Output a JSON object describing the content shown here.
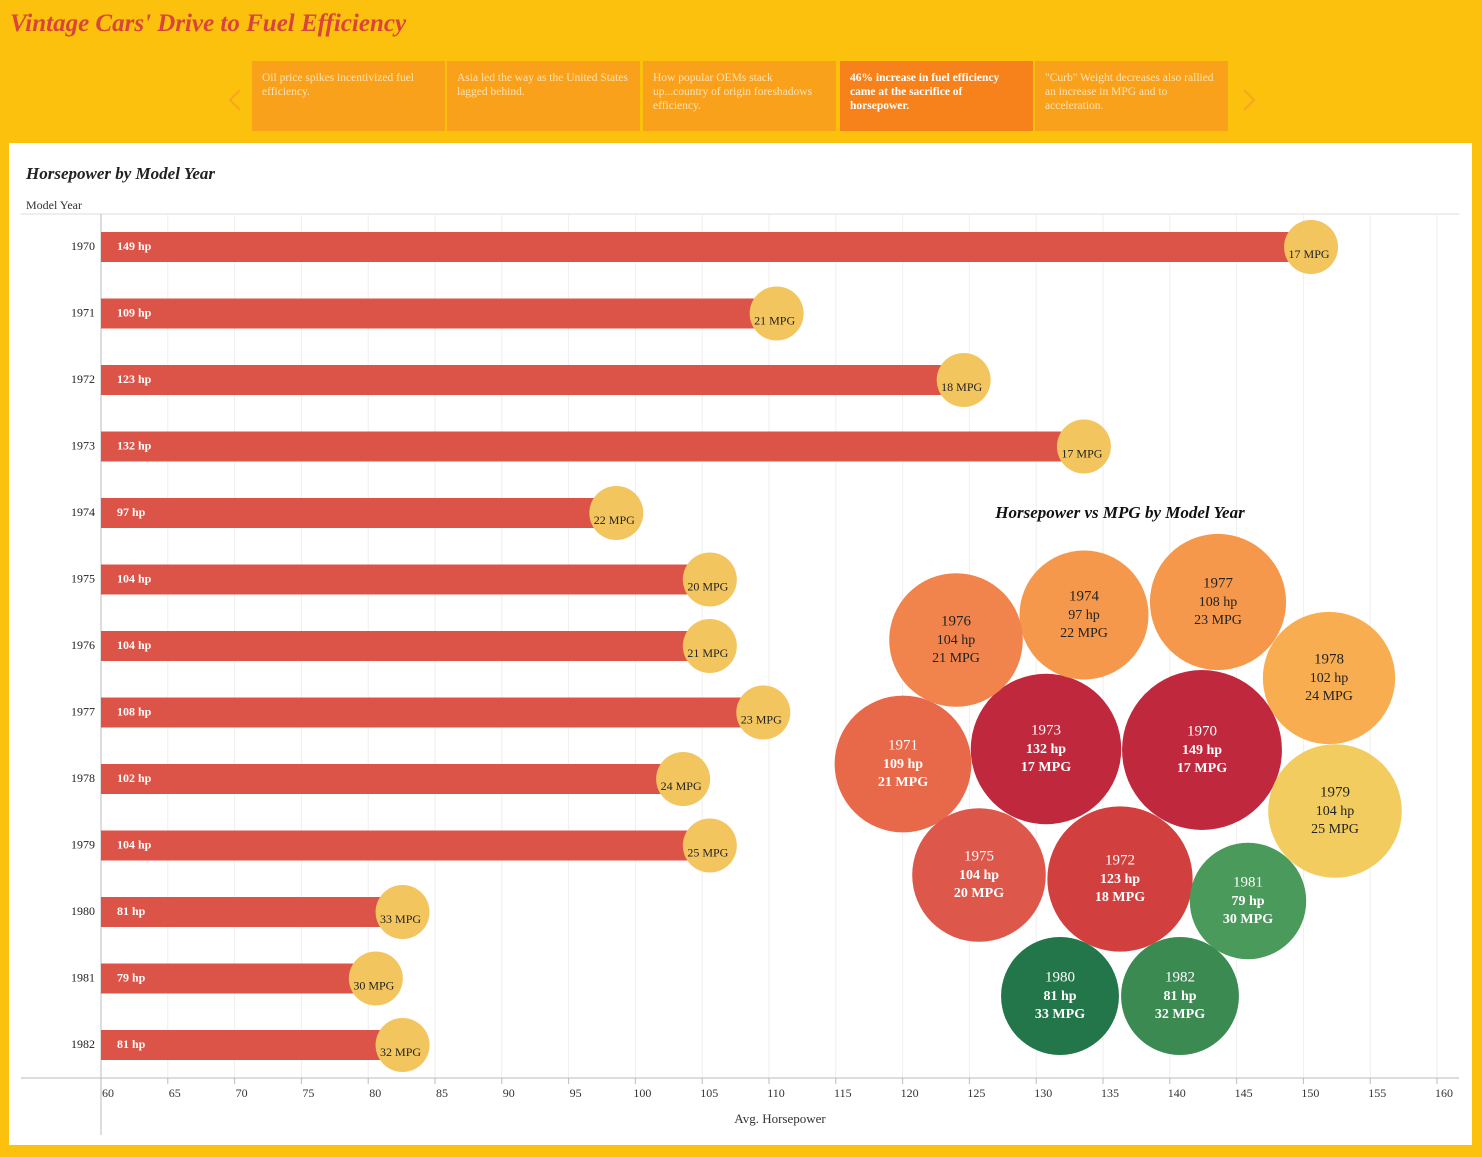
{
  "title": "Vintage Cars' Drive to Fuel Efficiency",
  "story_points": [
    "Oil price spikes incentivized fuel efficiency.",
    "Asia led the way as the United States lagged behind.",
    "How popular OEMs stack up...country of origin foreshadows efficiency.",
    "46% increase in fuel efficiency came at the sacrifice of horsepower.",
    "\"Curb\" Weight decreases also rallied an increase in MPG and to acceleration."
  ],
  "active_story_point": 3,
  "chart_data": [
    {
      "type": "bar",
      "title": "Horsepower by Model Year",
      "y_label": "Model Year",
      "x_label": "Avg. Horsepower",
      "categories": [
        "1970",
        "1971",
        "1972",
        "1973",
        "1974",
        "1975",
        "1976",
        "1977",
        "1978",
        "1979",
        "1980",
        "1981",
        "1982"
      ],
      "values": [
        149,
        109,
        123,
        132,
        97,
        104,
        104,
        108,
        102,
        104,
        81,
        79,
        81
      ],
      "value_labels": [
        "149 hp",
        "109 hp",
        "123 hp",
        "132 hp",
        "97 hp",
        "104 hp",
        "104 hp",
        "108 hp",
        "102 hp",
        "104 hp",
        "81 hp",
        "79 hp",
        "81 hp"
      ],
      "color": "#dc5448",
      "mpg": [
        17,
        21,
        18,
        17,
        22,
        20,
        21,
        23,
        24,
        25,
        33,
        30,
        32
      ],
      "mpg_labels": [
        "17 MPG",
        "21 MPG",
        "18 MPG",
        "17 MPG",
        "22 MPG",
        "20 MPG",
        "21 MPG",
        "23 MPG",
        "24 MPG",
        "25 MPG",
        "33 MPG",
        "30 MPG",
        "32 MPG"
      ],
      "mpg_color": "#f3c55e",
      "xlim": [
        60,
        160
      ],
      "xticks": [
        60,
        65,
        70,
        75,
        80,
        85,
        90,
        95,
        100,
        105,
        110,
        115,
        120,
        125,
        130,
        135,
        140,
        145,
        150,
        155,
        160
      ],
      "grid": true
    },
    {
      "type": "bubble",
      "title": "Horsepower vs MPG by Model Year",
      "categories": [
        "1970",
        "1971",
        "1972",
        "1973",
        "1974",
        "1975",
        "1976",
        "1977",
        "1978",
        "1979",
        "1980",
        "1981",
        "1982"
      ],
      "values": [
        149,
        109,
        123,
        132,
        97,
        104,
        104,
        108,
        102,
        104,
        81,
        79,
        81
      ],
      "value_labels": [
        "149 hp",
        "109 hp",
        "123 hp",
        "132 hp",
        "97 hp",
        "104 hp",
        "104 hp",
        "108 hp",
        "102 hp",
        "104 hp",
        "81 hp",
        "79 hp",
        "81 hp"
      ],
      "mpg": [
        17,
        21,
        18,
        17,
        22,
        20,
        21,
        23,
        24,
        25,
        33,
        30,
        32
      ],
      "mpg_labels": [
        "17 MPG",
        "21 MPG",
        "18 MPG",
        "17 MPG",
        "22 MPG",
        "20 MPG",
        "21 MPG",
        "23 MPG",
        "24 MPG",
        "25 MPG",
        "33 MPG",
        "30 MPG",
        "32 MPG"
      ],
      "colors": [
        "#c0293d",
        "#e8694a",
        "#d1403f",
        "#c0293d",
        "#f5984c",
        "#dd574a",
        "#f0844c",
        "#f5984c",
        "#f8ae50",
        "#f3cc5f",
        "#23764a",
        "#4a9a5c",
        "#3a8a52"
      ]
    }
  ]
}
